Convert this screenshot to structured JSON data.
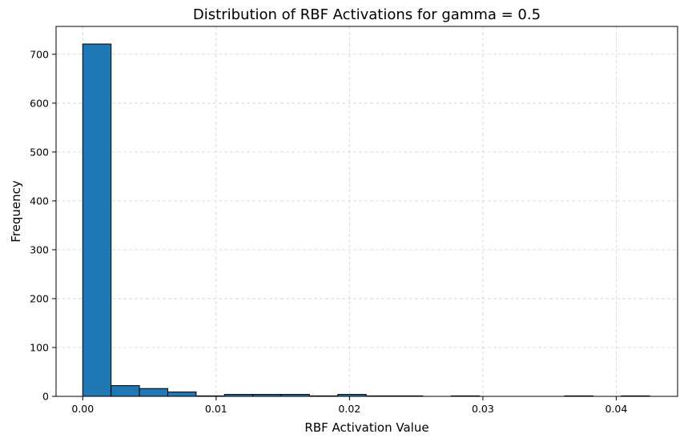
{
  "chart_data": {
    "type": "bar",
    "subtype": "histogram",
    "title": "Distribution of RBF Activations for gamma = 0.5",
    "xlabel": "RBF Activation Value",
    "ylabel": "Frequency",
    "xlim": [
      -0.002,
      0.0446
    ],
    "ylim": [
      0,
      757
    ],
    "xticks": [
      0.0,
      0.01,
      0.02,
      0.03,
      0.04
    ],
    "xtick_labels": [
      "0.00",
      "0.01",
      "0.02",
      "0.03",
      "0.04"
    ],
    "yticks": [
      0,
      100,
      200,
      300,
      400,
      500,
      600,
      700
    ],
    "ytick_labels": [
      "0",
      "100",
      "200",
      "300",
      "400",
      "500",
      "600",
      "700"
    ],
    "grid": true,
    "bar_color": "#1f77b4",
    "edge_color": "#000000",
    "bin_edges": [
      0.0,
      0.002125,
      0.00425,
      0.006375,
      0.0085,
      0.010625,
      0.01275,
      0.014875,
      0.017,
      0.019125,
      0.02125,
      0.023375,
      0.0255,
      0.027625,
      0.02975,
      0.031875,
      0.034,
      0.036125,
      0.03825,
      0.040375,
      0.0425
    ],
    "values": [
      721,
      22,
      16,
      9,
      1,
      4,
      4,
      4,
      1,
      4,
      1,
      1,
      0,
      1,
      0,
      0,
      0,
      1,
      0,
      1
    ]
  }
}
